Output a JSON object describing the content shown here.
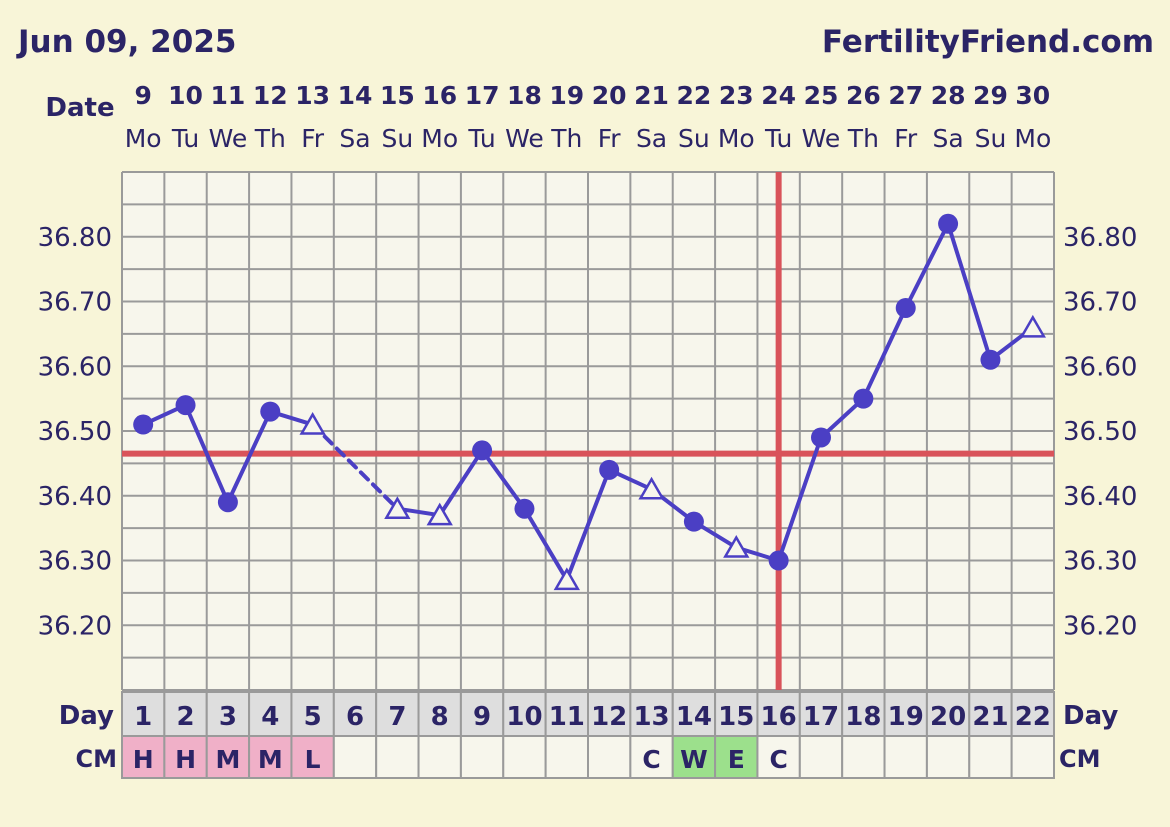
{
  "header": {
    "date": "Jun 09, 2025",
    "site": "FertilityFriend.com"
  },
  "labels": {
    "date_row": "Date",
    "day_row": "Day",
    "cm_row": "CM"
  },
  "colors": {
    "background": "#f8f5d8",
    "plot_background": "#f7f6ec",
    "grid": "#9a9a9a",
    "line": "#4b3fc4",
    "coverline": "#d9535a",
    "ovulation_line": "#d9535a",
    "text": "#2b2466",
    "cm_pink": "#f0b0c8",
    "cm_green": "#9ce08c",
    "day_row_bg": "#dedede"
  },
  "chart_data": {
    "type": "line",
    "title": "",
    "xlabel": "Day",
    "ylabel": "",
    "ylim": [
      36.1,
      36.9
    ],
    "y_ticks": [
      "36.20",
      "36.30",
      "36.40",
      "36.50",
      "36.60",
      "36.70",
      "36.80"
    ],
    "dates": [
      "9",
      "10",
      "11",
      "12",
      "13",
      "14",
      "15",
      "16",
      "17",
      "18",
      "19",
      "20",
      "21",
      "22",
      "23",
      "24",
      "25",
      "26",
      "27",
      "28",
      "29",
      "30"
    ],
    "weekdays": [
      "Mo",
      "Tu",
      "We",
      "Th",
      "Fr",
      "Sa",
      "Su",
      "Mo",
      "Tu",
      "We",
      "Th",
      "Fr",
      "Sa",
      "Su",
      "Mo",
      "Tu",
      "We",
      "Th",
      "Fr",
      "Sa",
      "Su",
      "Mo"
    ],
    "cycle_days": [
      "1",
      "2",
      "3",
      "4",
      "5",
      "6",
      "7",
      "8",
      "9",
      "10",
      "11",
      "12",
      "13",
      "14",
      "15",
      "16",
      "17",
      "18",
      "19",
      "20",
      "21",
      "22"
    ],
    "temps": [
      36.51,
      36.54,
      36.39,
      36.53,
      36.51,
      null,
      36.38,
      36.37,
      36.47,
      36.38,
      36.27,
      36.44,
      36.41,
      36.36,
      36.32,
      36.3,
      36.49,
      36.55,
      36.69,
      36.82,
      36.61,
      36.66
    ],
    "markers": [
      "circle",
      "circle",
      "circle",
      "circle",
      "triangle",
      "none",
      "triangle",
      "triangle",
      "circle",
      "circle",
      "triangle",
      "circle",
      "triangle",
      "circle",
      "triangle",
      "circle",
      "circle",
      "circle",
      "circle",
      "circle",
      "circle",
      "triangle"
    ],
    "dashed_segments": [
      [
        5,
        7
      ]
    ],
    "coverline": 36.465,
    "ovulation_day": 16,
    "cervical_mucus": [
      "H",
      "H",
      "M",
      "M",
      "L",
      "",
      "",
      "",
      "",
      "",
      "",
      "",
      "C",
      "W",
      "E",
      "C",
      "",
      "",
      "",
      "",
      "",
      ""
    ],
    "cm_fill": [
      "pink",
      "pink",
      "pink",
      "pink",
      "pink",
      "",
      "",
      "",
      "",
      "",
      "",
      "",
      "",
      "green",
      "green",
      "",
      "",
      "",
      "",
      "",
      "",
      ""
    ]
  }
}
